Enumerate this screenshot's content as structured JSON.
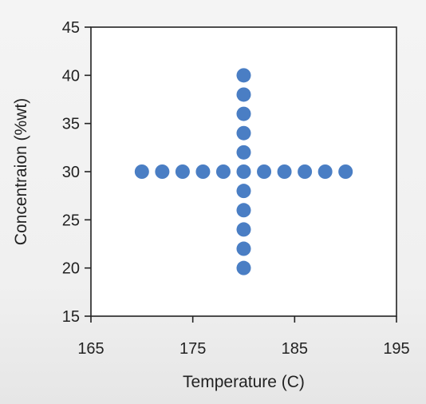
{
  "chart_data": {
    "type": "scatter",
    "title": "",
    "xlabel": "Temperature  (C)",
    "ylabel": "Concentraion (%wt)",
    "xlim": [
      165,
      195
    ],
    "ylim": [
      15,
      45
    ],
    "x_ticks": [
      165,
      175,
      185,
      195
    ],
    "y_ticks": [
      15,
      20,
      25,
      30,
      35,
      40,
      45
    ],
    "grid": false,
    "marker_color": "#4a7ec4",
    "series": [
      {
        "points": [
          {
            "x": 170,
            "y": 30
          },
          {
            "x": 172,
            "y": 30
          },
          {
            "x": 174,
            "y": 30
          },
          {
            "x": 176,
            "y": 30
          },
          {
            "x": 178,
            "y": 30
          },
          {
            "x": 180,
            "y": 30
          },
          {
            "x": 182,
            "y": 30
          },
          {
            "x": 184,
            "y": 30
          },
          {
            "x": 186,
            "y": 30
          },
          {
            "x": 188,
            "y": 30
          },
          {
            "x": 190,
            "y": 30
          },
          {
            "x": 180,
            "y": 20
          },
          {
            "x": 180,
            "y": 22
          },
          {
            "x": 180,
            "y": 24
          },
          {
            "x": 180,
            "y": 26
          },
          {
            "x": 180,
            "y": 28
          },
          {
            "x": 180,
            "y": 32
          },
          {
            "x": 180,
            "y": 34
          },
          {
            "x": 180,
            "y": 36
          },
          {
            "x": 180,
            "y": 38
          },
          {
            "x": 180,
            "y": 40
          }
        ]
      }
    ]
  }
}
